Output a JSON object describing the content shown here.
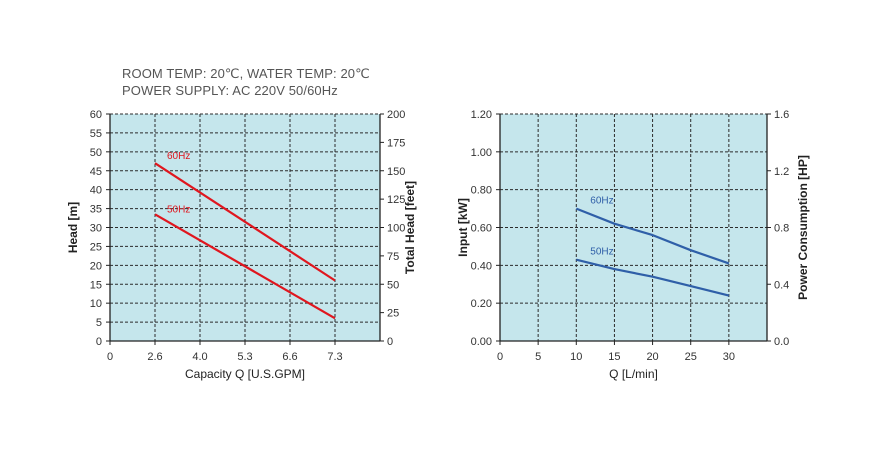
{
  "notes": {
    "conditions": "ROOM TEMP: 20℃, WATER TEMP: 20℃",
    "power_supply": "POWER SUPPLY: AC 220V 50/60Hz"
  },
  "colors": {
    "plot_background": "#c5e6ec",
    "grid": "#2b2b2b",
    "head_series": "#e0161e",
    "power_series": "#2f5fa8"
  },
  "chart_data": [
    {
      "type": "line",
      "xlabel": "Capacity Q [U.S.GPM]",
      "ylabel": "Head [m]",
      "y2label": "Total Head [feet]",
      "x_ticks": [
        "0",
        "2.6",
        "4.0",
        "5.3",
        "6.6",
        "7.3"
      ],
      "y_ticks": [
        "0",
        "5",
        "10",
        "15",
        "20",
        "25",
        "30",
        "35",
        "40",
        "45",
        "50",
        "55",
        "60"
      ],
      "y2_ticks": [
        "0",
        "25",
        "50",
        "75",
        "100",
        "125",
        "150",
        "175",
        "200"
      ],
      "ylim": [
        0,
        60
      ],
      "y2lim": [
        0,
        200
      ],
      "grid": true,
      "series": [
        {
          "name": "60Hz",
          "x": [
            2.6,
            7.3
          ],
          "y": [
            47,
            16
          ]
        },
        {
          "name": "50Hz",
          "x": [
            2.6,
            7.3
          ],
          "y": [
            33.5,
            6
          ]
        }
      ]
    },
    {
      "type": "line",
      "xlabel": "Q [L/min]",
      "ylabel": "Input [kW]",
      "y2label": "Power Consumption [HP]",
      "x_ticks": [
        "0",
        "5",
        "10",
        "15",
        "20",
        "25",
        "30"
      ],
      "y_ticks": [
        "0.00",
        "0.20",
        "0.40",
        "0.60",
        "0.80",
        "1.00",
        "1.20"
      ],
      "y2_ticks": [
        "0.0",
        "0.4",
        "0.8",
        "1.2",
        "1.6"
      ],
      "xlim": [
        0,
        35
      ],
      "ylim": [
        0,
        1.2
      ],
      "y2lim": [
        0,
        1.6
      ],
      "grid": true,
      "series": [
        {
          "name": "60Hz",
          "x": [
            10,
            15,
            20,
            25,
            30
          ],
          "y": [
            0.7,
            0.62,
            0.56,
            0.48,
            0.41
          ]
        },
        {
          "name": "50Hz",
          "x": [
            10,
            15,
            20,
            25,
            30
          ],
          "y": [
            0.43,
            0.38,
            0.34,
            0.29,
            0.24
          ]
        }
      ]
    }
  ]
}
